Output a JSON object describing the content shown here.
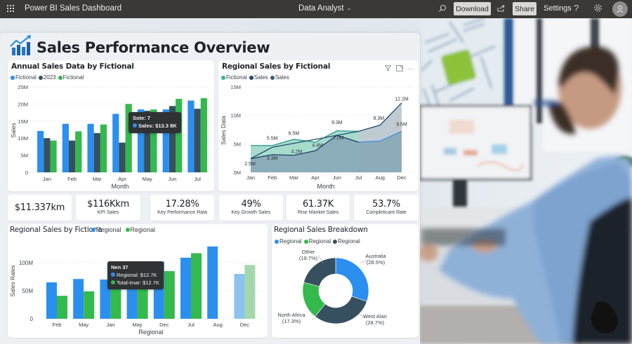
{
  "topbar": {
    "app_title": "Power BI Sales Dashboard",
    "workspace": "Data Analyst",
    "download_label": "Download",
    "share_label": "Share",
    "settings_label": "Settings",
    "help_label": "?",
    "icons": [
      "app-launcher-icon",
      "search-icon",
      "share-icon",
      "help-icon",
      "gear-icon",
      "user-avatar-icon"
    ]
  },
  "dashboard": {
    "title": "Sales Performance Overview",
    "logo_icon": "chart-growth-icon"
  },
  "annual_chart": {
    "title": "Annual Sales Data by Fictional",
    "legend": [
      {
        "label": "Fictional",
        "color": "#2b8ff0"
      },
      {
        "label": "2023",
        "color": "#37505f"
      },
      {
        "label": "Fictional",
        "color": "#34b94d"
      }
    ],
    "tooltip": {
      "title": "Sote: 7",
      "line": "Sales: $13.3 8K"
    }
  },
  "regional_area_chart": {
    "title": "Regional Sales by Fictional",
    "legend": [
      {
        "label": "Fictional",
        "color": "#36b3a0"
      },
      {
        "label": "Sales",
        "color": "#1f4a6e"
      },
      {
        "label": "Sales",
        "color": "#3b5e7e"
      }
    ],
    "icons": [
      "filter-icon",
      "focus-mode-icon",
      "more-options-icon"
    ],
    "more_label": "···"
  },
  "kpis": [
    {
      "value": "$11.337km",
      "label": ""
    },
    {
      "value": "$116Kkm",
      "label": "KPI Sales"
    },
    {
      "value": "17.28%",
      "label": "Key Performance Rata"
    },
    {
      "value": "49%",
      "label": "Key Growth Sales"
    },
    {
      "value": "61.37K",
      "label": "Rise Manket Sales"
    },
    {
      "value": "53.7%",
      "label": "Completicant Rate"
    }
  ],
  "regional_bar_chart": {
    "title": "Regional Sales by Fictiona",
    "legend": [
      {
        "label": "Regional",
        "color": "#2b8ff0"
      },
      {
        "label": "Regional",
        "color": "#34b94d"
      }
    ],
    "tooltip": {
      "title": "Nen 37",
      "line1": "Regional: $12.7K",
      "line2": "Total-imar: $12.7K"
    }
  },
  "breakdown_chart": {
    "title": "Regional Sales Breakdown",
    "legend": [
      {
        "label": "Regional",
        "color": "#2b8ff0"
      },
      {
        "label": "Regional",
        "color": "#34b94d"
      },
      {
        "label": "Regional",
        "color": "#37505f"
      }
    ]
  },
  "chart_data": [
    {
      "type": "bar",
      "title": "Annual Sales Data by Fictional",
      "xlabel": "Month",
      "ylabel": "Sales",
      "ylim": [
        0,
        25
      ],
      "y_ticks": [
        "0",
        "5M",
        "10M",
        "15M",
        "20M",
        "25M"
      ],
      "grid": true,
      "legend_position": "top-left",
      "categories": [
        "Jan",
        "Feb",
        "Mar",
        "Apr",
        "May",
        "Jun",
        "Jul"
      ],
      "series": [
        {
          "name": "Fictional",
          "color": "#2b8ff0",
          "values": [
            12.1,
            14.2,
            14.2,
            17.1,
            18.4,
            18.4,
            21.0
          ]
        },
        {
          "name": "2023",
          "color": "#37505f",
          "values": [
            10.0,
            9.3,
            11.5,
            8.7,
            18.0,
            19.4,
            18.6
          ]
        },
        {
          "name": "Fictional",
          "color": "#34b94d",
          "values": [
            9.3,
            12.0,
            14.0,
            20.0,
            18.4,
            21.5,
            21.7
          ]
        }
      ],
      "annotations": [
        "Sote: 7",
        "Sales: $13.3 8K"
      ]
    },
    {
      "type": "area",
      "title": "Regional Sales by Fictional",
      "xlabel": "Month",
      "ylabel": "Sales Data",
      "ylim": [
        0,
        15
      ],
      "y_ticks": [
        "0M",
        "5M",
        "10M",
        "15M"
      ],
      "grid": true,
      "legend_position": "top-left",
      "categories": [
        "Jan",
        "Feb",
        "Mar",
        "Apr",
        "Jun",
        "Jul",
        "Aug",
        "Dec"
      ],
      "series": [
        {
          "name": "Fictional",
          "color": "#36b3a0",
          "values": [
            4.7,
            4.7,
            5.8,
            5.3,
            7.3,
            7.2,
            null,
            null
          ]
        },
        {
          "name": "Sales",
          "color": "#1f4a6e",
          "values": [
            2.4,
            4.4,
            null,
            null,
            6.5,
            7.2,
            8.3,
            12.2
          ]
        },
        {
          "name": "Sales",
          "color": "#3b7fd0",
          "values": [
            2.4,
            3.1,
            3.0,
            3.8,
            6.5,
            5.3,
            5.5,
            7.2
          ]
        }
      ],
      "data_labels": [
        "2.5M",
        "5.5M",
        "3.3M",
        "6.5M",
        "4.2M",
        "4.4M",
        "9.3M",
        "7.0M",
        "9.3M",
        "12.2M",
        "9.5M"
      ]
    },
    {
      "type": "bar",
      "title": "Regional Sales by Fictiona",
      "xlabel": "Regional",
      "ylabel": "Sales Rales",
      "ylim": [
        0,
        140
      ],
      "y_ticks": [
        "0",
        "50M",
        "100M"
      ],
      "grid": true,
      "legend_position": "top",
      "categories": [
        "Feb",
        "May",
        "Jan",
        "May",
        "Dec",
        "Jul",
        "Aug",
        "Dec"
      ],
      "series": [
        {
          "name": "Regional",
          "color": "#2b8ff0",
          "values": [
            65,
            71,
            70,
            60,
            102,
            109,
            129,
            80
          ]
        },
        {
          "name": "Regional",
          "color": "#34b94d",
          "values": [
            41,
            49,
            60,
            60,
            85,
            117,
            null,
            96
          ]
        }
      ],
      "annotations": [
        "Nen 37",
        "Regional: $12.7K",
        "Total-imar: $12.7K"
      ]
    },
    {
      "type": "pie",
      "subtype": "donut",
      "title": "Regional Sales Breakdown",
      "legend_position": "top-left",
      "categories": [
        "Australia",
        "West Alan",
        "North Africa",
        "Other"
      ],
      "values": [
        28.5,
        28.7,
        17.3,
        19.7
      ],
      "labels": [
        "Australia (28.5%)",
        "West Alan (28.7%)",
        "North Africa (17.3%)",
        "Other (19.7%)"
      ],
      "colors": [
        "#2b8ff0",
        "#37505f",
        "#34b94d",
        "#37505f"
      ]
    }
  ]
}
